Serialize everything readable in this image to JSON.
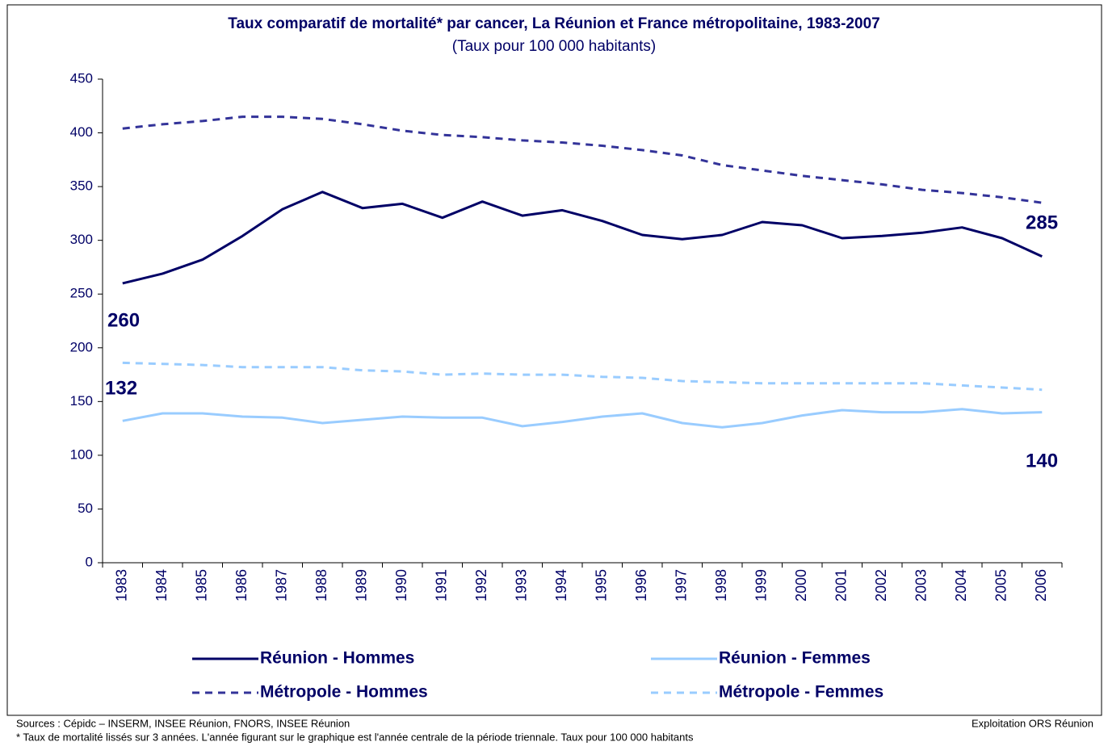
{
  "chart_data": {
    "type": "line",
    "title": "Taux comparatif de mortalité* par cancer, La Réunion et France métropolitaine, 1983-2007",
    "subtitle": "(Taux pour 100 000 habitants)",
    "categories": [
      "1983",
      "1984",
      "1985",
      "1986",
      "1987",
      "1988",
      "1989",
      "1990",
      "1991",
      "1992",
      "1993",
      "1994",
      "1995",
      "1996",
      "1997",
      "1998",
      "1999",
      "2000",
      "2001",
      "2002",
      "2003",
      "2004",
      "2005",
      "2006"
    ],
    "series": [
      {
        "name": "Réunion - Hommes",
        "color": "#000066",
        "dashed": false,
        "values": [
          260,
          269,
          282,
          304,
          329,
          345,
          330,
          334,
          321,
          336,
          323,
          328,
          318,
          305,
          301,
          305,
          317,
          314,
          302,
          304,
          307,
          312,
          302,
          285
        ]
      },
      {
        "name": "Réunion - Femmes",
        "color": "#99ccff",
        "dashed": false,
        "values": [
          132,
          139,
          139,
          136,
          135,
          130,
          133,
          136,
          135,
          135,
          127,
          131,
          136,
          139,
          130,
          126,
          130,
          137,
          142,
          140,
          140,
          143,
          139,
          140
        ]
      },
      {
        "name": "Métropole - Hommes",
        "color": "#333399",
        "dashed": true,
        "values": [
          404,
          408,
          411,
          415,
          415,
          413,
          408,
          402,
          398,
          396,
          393,
          391,
          388,
          384,
          379,
          370,
          365,
          360,
          356,
          352,
          347,
          344,
          340,
          335
        ]
      },
      {
        "name": "Métropole - Femmes",
        "color": "#99ccff",
        "dashed": true,
        "values": [
          186,
          185,
          184,
          182,
          182,
          182,
          179,
          178,
          175,
          176,
          175,
          175,
          173,
          172,
          169,
          168,
          167,
          167,
          167,
          167,
          167,
          165,
          163,
          161
        ]
      }
    ],
    "ylim": [
      0,
      450
    ],
    "yticks": [
      0,
      50,
      100,
      150,
      200,
      250,
      300,
      350,
      400,
      450
    ],
    "grid": false,
    "annotations": [
      "260",
      "285",
      "132",
      "140"
    ],
    "sources": "Sources :  Cépidc – INSERM, INSEE Réunion, FNORS, INSEE Réunion",
    "credit": "Exploitation ORS Réunion",
    "footnote": "* Taux de mortalité lissés sur 3 années. L'année figurant sur le graphique est l'année centrale de la période triennale. Taux pour 100 000 habitants"
  }
}
